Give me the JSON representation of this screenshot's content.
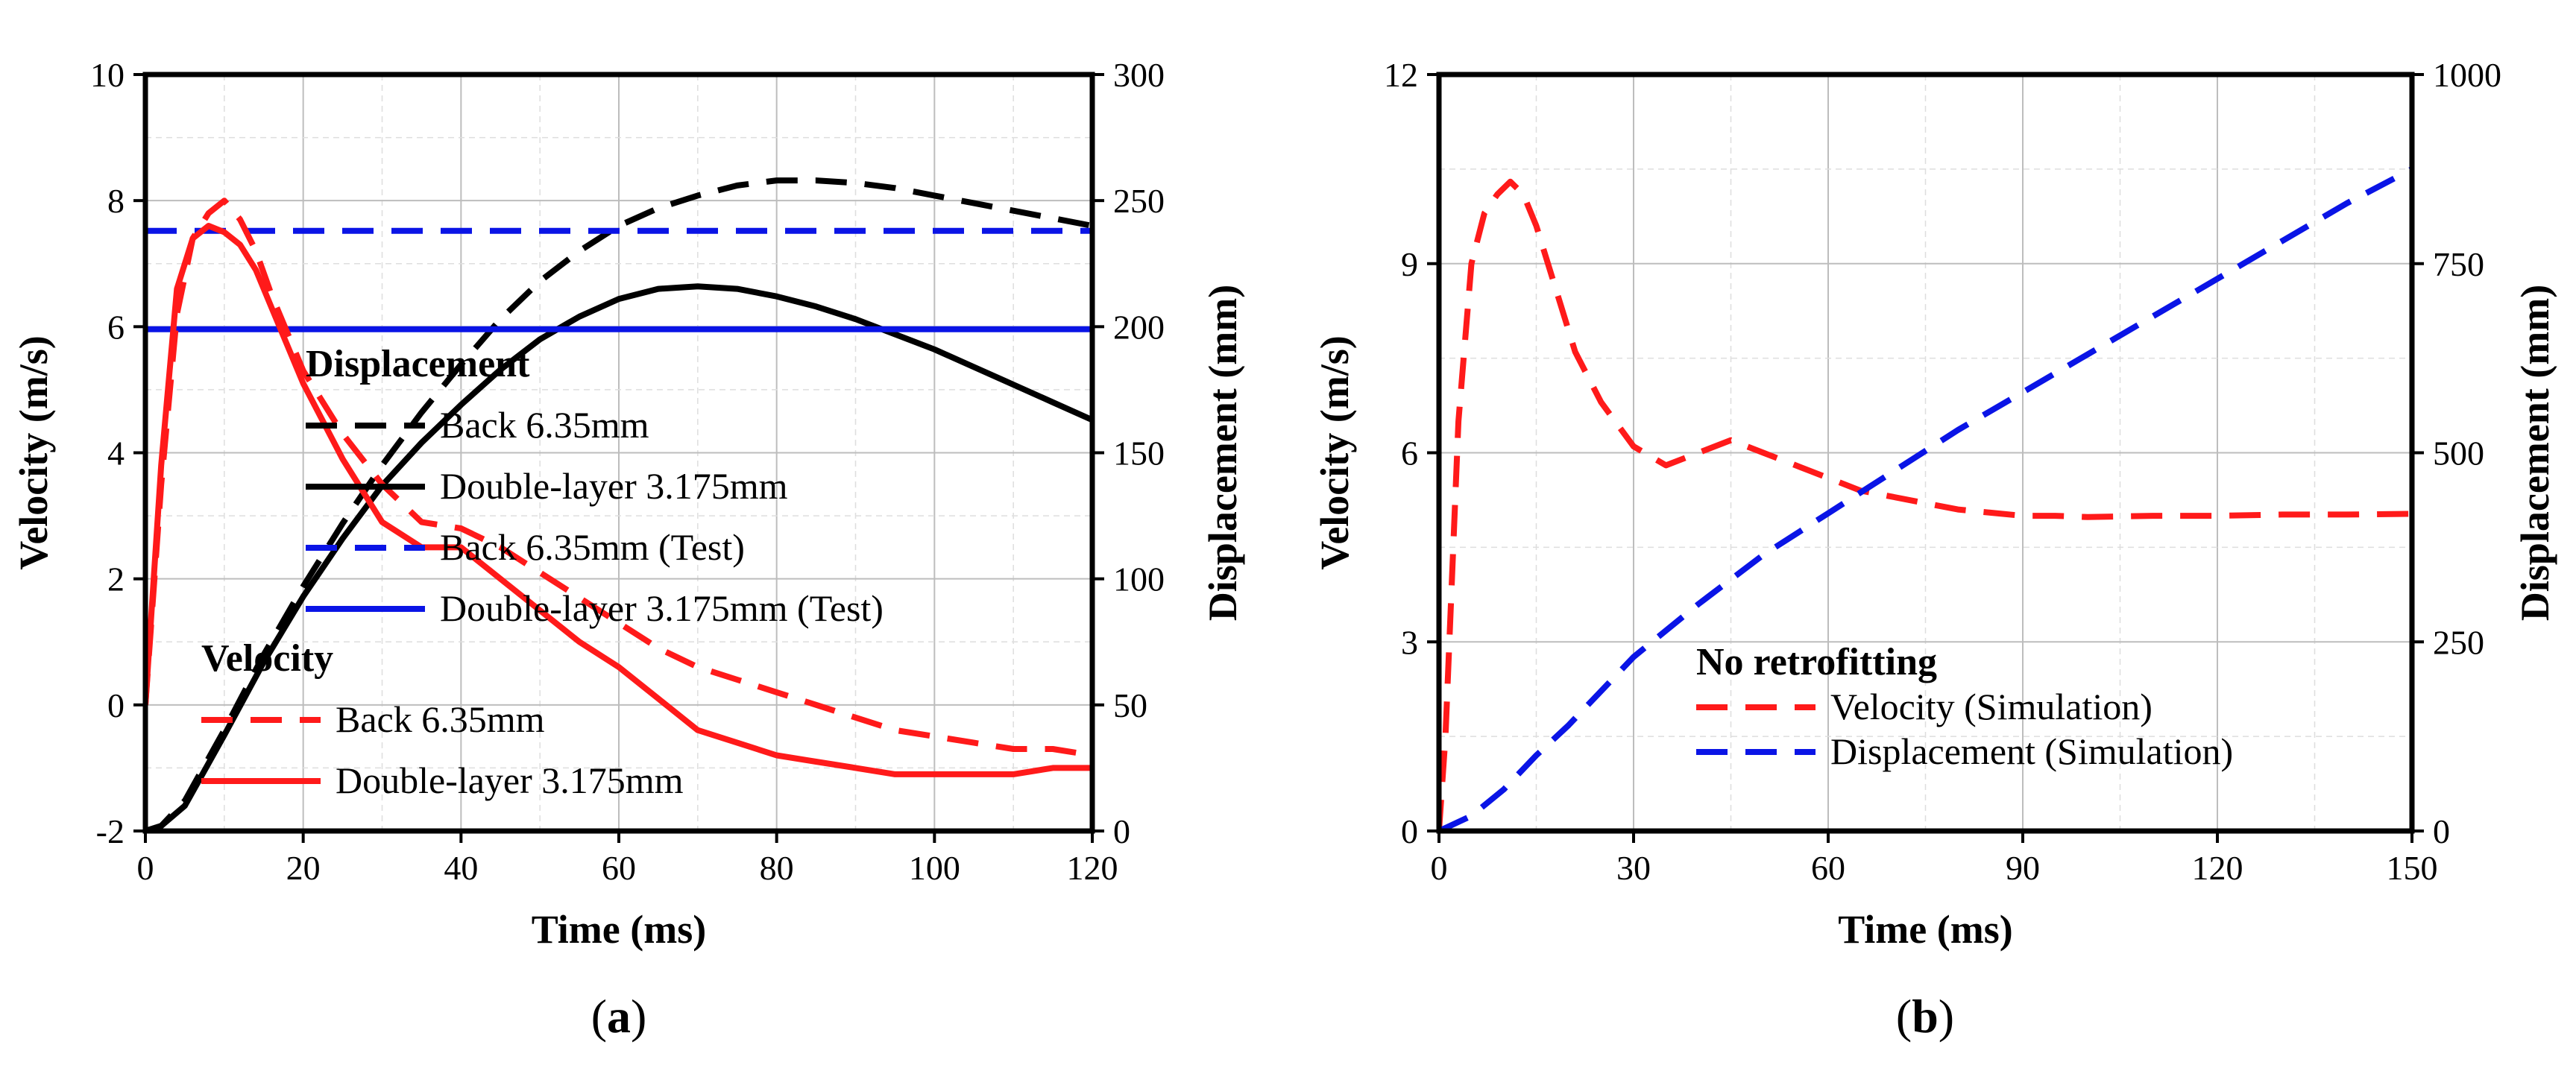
{
  "chart_data": [
    {
      "type": "line",
      "caption": "(a)",
      "caption_letter": "a",
      "xlabel": "Time (ms)",
      "ylabel": "Velocity (m/s)",
      "y2label": "Displacement (mm)",
      "xlim": [
        0,
        120
      ],
      "ylim": [
        -2,
        10
      ],
      "y2lim": [
        0,
        300
      ],
      "xticks": [
        0,
        20,
        40,
        60,
        80,
        100,
        120
      ],
      "yticks": [
        -2,
        0,
        2,
        4,
        6,
        8,
        10
      ],
      "y2ticks": [
        0,
        50,
        100,
        150,
        200,
        250,
        300
      ],
      "grid": true,
      "legend": {
        "groups": [
          {
            "title": "Displacement",
            "entries": [
              {
                "label": "Back 6.35mm",
                "color": "#000000",
                "dash": true
              },
              {
                "label": "Double-layer 3.175mm",
                "color": "#000000",
                "dash": false
              },
              {
                "label": "Back 6.35mm (Test)",
                "color": "#0a14e6",
                "dash": true
              },
              {
                "label": "Double-layer 3.175mm (Test)",
                "color": "#0a14e6",
                "dash": false
              }
            ]
          },
          {
            "title": "Velocity",
            "entries": [
              {
                "label": "Back 6.35mm",
                "color": "#ff1a1a",
                "dash": true
              },
              {
                "label": "Double-layer 3.175mm",
                "color": "#ff1a1a",
                "dash": false
              }
            ]
          }
        ]
      },
      "series": [
        {
          "name": "Displacement - Back 6.35mm",
          "axis": "right",
          "color": "#000000",
          "dash": true,
          "x": [
            0,
            2,
            5,
            10,
            15,
            20,
            25,
            30,
            35,
            40,
            45,
            50,
            55,
            60,
            65,
            70,
            75,
            80,
            85,
            90,
            95,
            100,
            105,
            110,
            115,
            120
          ],
          "y": [
            0,
            2,
            12,
            40,
            70,
            97,
            122,
            145,
            166,
            185,
            203,
            218,
            230,
            240,
            247,
            252,
            256,
            258,
            258,
            257,
            255,
            252,
            249,
            246,
            243,
            240
          ]
        },
        {
          "name": "Displacement - Double-layer 3.175mm",
          "axis": "right",
          "color": "#000000",
          "dash": false,
          "x": [
            0,
            2,
            5,
            10,
            15,
            20,
            25,
            30,
            35,
            40,
            45,
            50,
            55,
            60,
            65,
            70,
            75,
            80,
            85,
            90,
            95,
            100,
            105,
            110,
            115,
            120
          ],
          "y": [
            0,
            2,
            10,
            38,
            67,
            93,
            116,
            137,
            154,
            169,
            183,
            195,
            204,
            211,
            215,
            216,
            215,
            212,
            208,
            203,
            197,
            191,
            184,
            177,
            170,
            163
          ]
        },
        {
          "name": "Displacement - Back 6.35mm (Test)",
          "axis": "right",
          "color": "#0a14e6",
          "dash": true,
          "x": [
            0,
            120
          ],
          "y": [
            238,
            238
          ]
        },
        {
          "name": "Displacement - Double-layer 3.175mm (Test)",
          "axis": "right",
          "color": "#0a14e6",
          "dash": false,
          "x": [
            0,
            120
          ],
          "y": [
            199,
            199
          ]
        },
        {
          "name": "Velocity - Back 6.35mm",
          "axis": "left",
          "color": "#ff1a1a",
          "dash": true,
          "x": [
            0,
            2,
            4,
            6,
            8,
            10,
            12,
            14,
            16,
            18,
            20,
            25,
            30,
            35,
            40,
            45,
            50,
            55,
            60,
            65,
            70,
            75,
            80,
            85,
            90,
            95,
            100,
            105,
            110,
            115,
            120
          ],
          "y": [
            0,
            3.5,
            6.2,
            7.4,
            7.8,
            8.0,
            7.7,
            7.2,
            6.5,
            5.9,
            5.3,
            4.3,
            3.5,
            2.9,
            2.8,
            2.5,
            2.1,
            1.7,
            1.3,
            0.9,
            0.6,
            0.4,
            0.2,
            0.0,
            -0.2,
            -0.4,
            -0.5,
            -0.6,
            -0.7,
            -0.7,
            -0.8
          ]
        },
        {
          "name": "Velocity - Double-layer 3.175mm",
          "axis": "left",
          "color": "#ff1a1a",
          "dash": false,
          "x": [
            0,
            2,
            4,
            6,
            8,
            10,
            12,
            14,
            16,
            18,
            20,
            25,
            30,
            35,
            40,
            45,
            50,
            55,
            60,
            65,
            70,
            75,
            80,
            85,
            90,
            95,
            100,
            105,
            110,
            115,
            120
          ],
          "y": [
            0,
            3.8,
            6.6,
            7.4,
            7.6,
            7.5,
            7.3,
            6.9,
            6.3,
            5.7,
            5.1,
            3.9,
            2.9,
            2.5,
            2.5,
            2.0,
            1.5,
            1.0,
            0.6,
            0.1,
            -0.4,
            -0.6,
            -0.8,
            -0.9,
            -1.0,
            -1.1,
            -1.1,
            -1.1,
            -1.1,
            -1.0,
            -1.0
          ]
        }
      ]
    },
    {
      "type": "line",
      "caption": "(b)",
      "caption_letter": "b",
      "xlabel": "Time (ms)",
      "ylabel": "Velocity (m/s)",
      "y2label": "Displacement (mm)",
      "xlim": [
        0,
        150
      ],
      "ylim": [
        0,
        12
      ],
      "y2lim": [
        0,
        1000
      ],
      "xticks": [
        0,
        30,
        60,
        90,
        120,
        150
      ],
      "yticks": [
        0,
        3,
        6,
        9,
        12
      ],
      "y2ticks": [
        0,
        250,
        500,
        750,
        1000
      ],
      "grid": true,
      "legend": {
        "groups": [
          {
            "title": "No retrofitting",
            "entries": [
              {
                "label": "Velocity (Simulation)",
                "color": "#ff1a1a",
                "dash": true
              },
              {
                "label": "Displacement (Simulation)",
                "color": "#0a14e6",
                "dash": true
              }
            ]
          }
        ]
      },
      "series": [
        {
          "name": "Velocity (Simulation)",
          "axis": "left",
          "color": "#ff1a1a",
          "dash": true,
          "x": [
            0,
            1,
            3,
            5,
            7,
            9,
            11,
            13,
            15,
            18,
            21,
            25,
            30,
            35,
            40,
            45,
            50,
            55,
            60,
            65,
            70,
            75,
            80,
            85,
            90,
            95,
            100,
            110,
            120,
            130,
            140,
            150
          ],
          "y": [
            0,
            1.5,
            6.5,
            9.0,
            9.8,
            10.1,
            10.3,
            10.1,
            9.6,
            8.6,
            7.6,
            6.8,
            6.1,
            5.8,
            6.0,
            6.2,
            6.0,
            5.8,
            5.6,
            5.4,
            5.3,
            5.2,
            5.1,
            5.05,
            5.0,
            5.0,
            4.98,
            5.0,
            5.0,
            5.02,
            5.02,
            5.03
          ]
        },
        {
          "name": "Displacement (Simulation)",
          "axis": "right",
          "color": "#0a14e6",
          "dash": true,
          "x": [
            0,
            5,
            10,
            15,
            20,
            30,
            40,
            50,
            60,
            70,
            80,
            90,
            100,
            110,
            120,
            130,
            140,
            150
          ],
          "y": [
            0,
            20,
            55,
            100,
            140,
            230,
            300,
            365,
            420,
            475,
            530,
            580,
            630,
            680,
            730,
            780,
            830,
            875
          ]
        }
      ]
    }
  ]
}
